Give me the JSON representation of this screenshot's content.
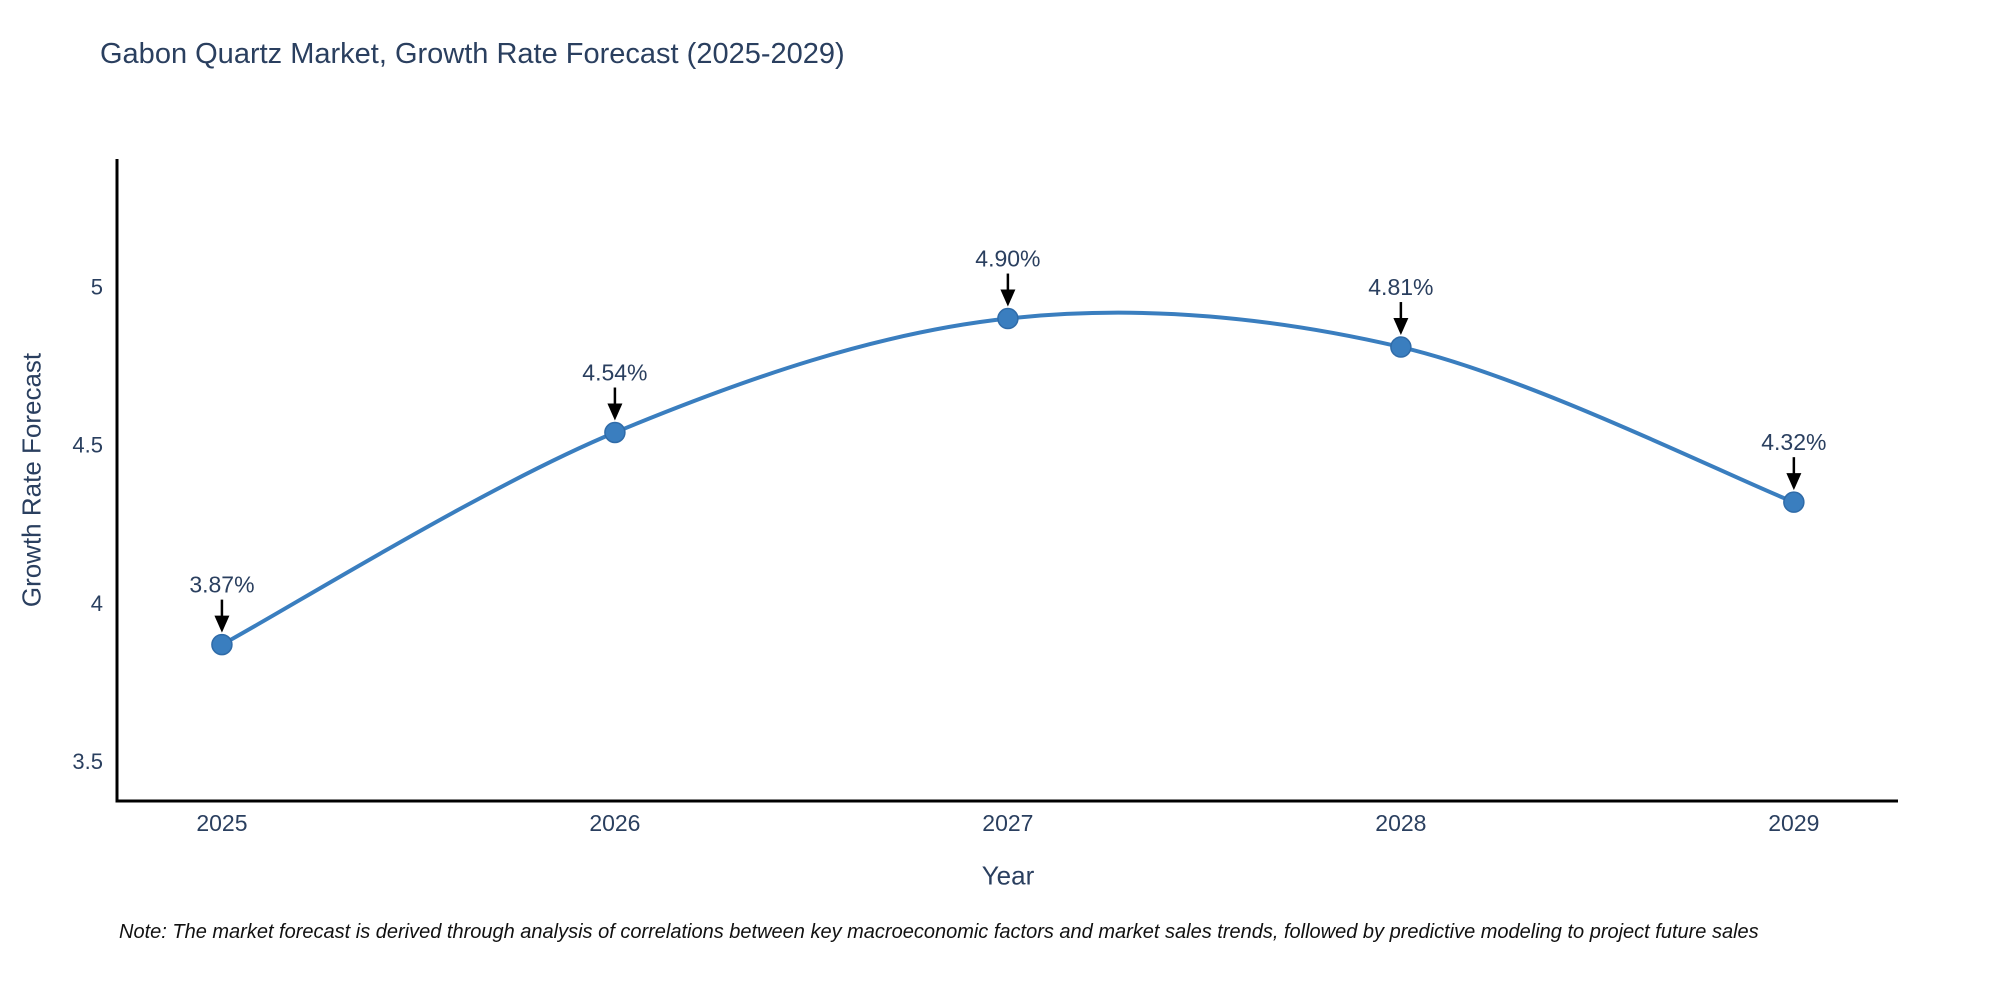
{
  "header": {
    "title": "Gabon Quartz Market, Growth Rate Forecast (2025-2029)"
  },
  "footer": {
    "note": "Note: The market forecast is derived through analysis of correlations between key macroeconomic factors and market sales trends, followed by predictive modeling to project future sales"
  },
  "chart_data": {
    "type": "line",
    "title": "Gabon Quartz Market, Growth Rate Forecast (2025-2029)",
    "xlabel": "Year",
    "ylabel": "Growth Rate Forecast",
    "x": [
      2025,
      2026,
      2027,
      2028,
      2029
    ],
    "y": [
      3.87,
      4.54,
      4.9,
      4.81,
      4.32
    ],
    "point_labels": [
      "3.87%",
      "4.54%",
      "4.90%",
      "4.81%",
      "4.32%"
    ],
    "x_tick_labels": [
      "2025",
      "2026",
      "2027",
      "2028",
      "2029"
    ],
    "y_ticks": [
      3.5,
      4,
      4.5,
      5
    ],
    "y_tick_labels": [
      "3.5",
      "4",
      "4.5",
      "5"
    ],
    "xlim": [
      2024.733,
      2029.265
    ],
    "ylim": [
      3.376,
      5.404
    ],
    "line_shape": "spline",
    "grid": false,
    "legend": false,
    "colors": {
      "line": "#3a7ebf",
      "marker": "#3a7ebf",
      "marker_edge": "#2f6ba8",
      "chart_text": "#2a3f5f",
      "axis_line": "#000000",
      "annotation_text": "#2a3f5f",
      "annotation_arrow": "#000000",
      "note_text": "#111111"
    }
  }
}
